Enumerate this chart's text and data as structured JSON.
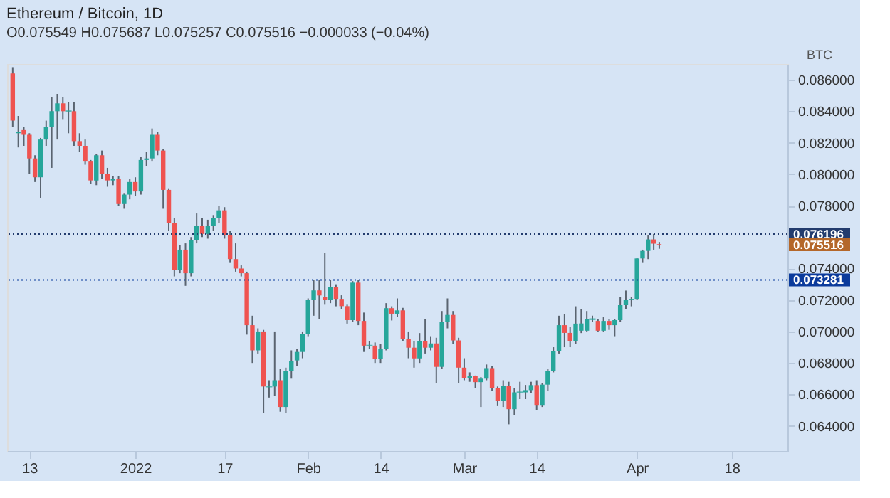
{
  "chart_data": {
    "type": "candlestick",
    "title": "Ethereum / Bitcoin, 1D",
    "subtitle": "O0.075549 H0.075687 L0.075257 C0.075516 −0.000033 (−0.04%)",
    "ylabel": "BTC",
    "x": [
      "2021-12-10",
      "2021-12-11",
      "2021-12-12",
      "2021-12-13",
      "2021-12-14",
      "2021-12-15",
      "2021-12-16",
      "2021-12-17",
      "2021-12-18",
      "2021-12-19",
      "2021-12-20",
      "2021-12-21",
      "2021-12-22",
      "2021-12-23",
      "2021-12-24",
      "2021-12-25",
      "2021-12-26",
      "2021-12-27",
      "2021-12-28",
      "2021-12-29",
      "2021-12-30",
      "2021-12-31",
      "2022-01-01",
      "2022-01-02",
      "2022-01-03",
      "2022-01-04",
      "2022-01-05",
      "2022-01-06",
      "2022-01-07",
      "2022-01-08",
      "2022-01-09",
      "2022-01-10",
      "2022-01-11",
      "2022-01-12",
      "2022-01-13",
      "2022-01-14",
      "2022-01-15",
      "2022-01-16",
      "2022-01-17",
      "2022-01-18",
      "2022-01-19",
      "2022-01-20",
      "2022-01-21",
      "2022-01-22",
      "2022-01-23",
      "2022-01-24",
      "2022-01-25",
      "2022-01-26",
      "2022-01-27",
      "2022-01-28",
      "2022-01-29",
      "2022-01-30",
      "2022-01-31",
      "2022-02-01",
      "2022-02-02",
      "2022-02-03",
      "2022-02-04",
      "2022-02-05",
      "2022-02-06",
      "2022-02-07",
      "2022-02-08",
      "2022-02-09",
      "2022-02-10",
      "2022-02-11",
      "2022-02-12",
      "2022-02-13",
      "2022-02-14",
      "2022-02-15",
      "2022-02-16",
      "2022-02-17",
      "2022-02-18",
      "2022-02-19",
      "2022-02-20",
      "2022-02-21",
      "2022-02-22",
      "2022-02-23",
      "2022-02-24",
      "2022-02-25",
      "2022-02-26",
      "2022-02-27",
      "2022-02-28",
      "2022-03-01",
      "2022-03-02",
      "2022-03-03",
      "2022-03-04",
      "2022-03-05",
      "2022-03-06",
      "2022-03-07",
      "2022-03-08",
      "2022-03-09",
      "2022-03-10",
      "2022-03-11",
      "2022-03-12",
      "2022-03-13",
      "2022-03-14",
      "2022-03-15",
      "2022-03-16",
      "2022-03-17",
      "2022-03-18",
      "2022-03-19",
      "2022-03-20",
      "2022-03-21",
      "2022-03-22",
      "2022-03-23",
      "2022-03-24",
      "2022-03-25",
      "2022-03-26",
      "2022-03-27",
      "2022-03-28",
      "2022-03-29",
      "2022-03-30",
      "2022-03-31",
      "2022-04-01",
      "2022-04-02",
      "2022-04-03",
      "2022-04-04",
      "2022-04-05"
    ],
    "ohlc": [
      [
        0.0864,
        0.0868,
        0.083,
        0.0834
      ],
      [
        0.0826,
        0.0837,
        0.0817,
        0.0827
      ],
      [
        0.0828,
        0.083,
        0.0818,
        0.0825
      ],
      [
        0.0825,
        0.0826,
        0.08,
        0.081
      ],
      [
        0.081,
        0.0812,
        0.0795,
        0.0798
      ],
      [
        0.0798,
        0.0823,
        0.0785,
        0.0822
      ],
      [
        0.0822,
        0.0834,
        0.0818,
        0.083
      ],
      [
        0.083,
        0.0849,
        0.0804,
        0.084
      ],
      [
        0.084,
        0.0851,
        0.0822,
        0.0845
      ],
      [
        0.0845,
        0.0849,
        0.0835,
        0.084
      ],
      [
        0.084,
        0.0846,
        0.0826,
        0.084
      ],
      [
        0.084,
        0.0846,
        0.0818,
        0.0821
      ],
      [
        0.0821,
        0.0826,
        0.0814,
        0.0818
      ],
      [
        0.0818,
        0.0822,
        0.0806,
        0.0808
      ],
      [
        0.0808,
        0.0809,
        0.0794,
        0.0796
      ],
      [
        0.0796,
        0.0813,
        0.0793,
        0.0812
      ],
      [
        0.0812,
        0.0815,
        0.0797,
        0.08
      ],
      [
        0.08,
        0.0804,
        0.0792,
        0.0796
      ],
      [
        0.0796,
        0.0799,
        0.0793,
        0.0797
      ],
      [
        0.0797,
        0.0799,
        0.078,
        0.0781
      ],
      [
        0.0781,
        0.0788,
        0.0778,
        0.0787
      ],
      [
        0.0787,
        0.0797,
        0.0784,
        0.0795
      ],
      [
        0.0795,
        0.0798,
        0.0786,
        0.0789
      ],
      [
        0.0789,
        0.0811,
        0.0787,
        0.0809
      ],
      [
        0.0809,
        0.0814,
        0.0805,
        0.081
      ],
      [
        0.081,
        0.0829,
        0.0808,
        0.0825
      ],
      [
        0.0825,
        0.0827,
        0.0812,
        0.0815
      ],
      [
        0.0815,
        0.0816,
        0.0778,
        0.079
      ],
      [
        0.079,
        0.0791,
        0.0764,
        0.0769
      ],
      [
        0.0769,
        0.0772,
        0.0735,
        0.0739
      ],
      [
        0.0739,
        0.0755,
        0.0737,
        0.0752
      ],
      [
        0.0752,
        0.0756,
        0.0729,
        0.0737
      ],
      [
        0.0737,
        0.076,
        0.0735,
        0.0758
      ],
      [
        0.0758,
        0.0775,
        0.0756,
        0.0767
      ],
      [
        0.0767,
        0.0772,
        0.076,
        0.0762
      ],
      [
        0.0762,
        0.0771,
        0.0759,
        0.0767
      ],
      [
        0.0767,
        0.0774,
        0.0764,
        0.0772
      ],
      [
        0.0772,
        0.078,
        0.0769,
        0.0777
      ],
      [
        0.0777,
        0.0779,
        0.0759,
        0.0761
      ],
      [
        0.0761,
        0.0764,
        0.0744,
        0.0746
      ],
      [
        0.0746,
        0.0756,
        0.0738,
        0.074
      ],
      [
        0.074,
        0.0742,
        0.0735,
        0.0737
      ],
      [
        0.0737,
        0.0738,
        0.0698,
        0.0704
      ],
      [
        0.0704,
        0.071,
        0.068,
        0.0688
      ],
      [
        0.0688,
        0.0702,
        0.0686,
        0.07
      ],
      [
        0.07,
        0.0701,
        0.0648,
        0.0665
      ],
      [
        0.0665,
        0.0669,
        0.0658,
        0.0665
      ],
      [
        0.0665,
        0.07,
        0.0659,
        0.0669
      ],
      [
        0.0669,
        0.0676,
        0.0649,
        0.0652
      ],
      [
        0.0652,
        0.0677,
        0.0648,
        0.0675
      ],
      [
        0.0675,
        0.0688,
        0.067,
        0.0681
      ],
      [
        0.06816,
        0.0689,
        0.0678,
        0.0687
      ],
      [
        0.0687,
        0.07,
        0.0683,
        0.06986
      ],
      [
        0.06986,
        0.0721,
        0.0697,
        0.07202
      ],
      [
        0.07202,
        0.0733,
        0.071,
        0.07261
      ],
      [
        0.07261,
        0.0733,
        0.0708,
        0.07229
      ],
      [
        0.07221,
        0.075,
        0.0717,
        0.07202
      ],
      [
        0.07202,
        0.0733,
        0.0718,
        0.0728
      ],
      [
        0.0728,
        0.073,
        0.0716,
        0.07207
      ],
      [
        0.07207,
        0.0723,
        0.0714,
        0.07161
      ],
      [
        0.07161,
        0.0717,
        0.0705,
        0.07072
      ],
      [
        0.07072,
        0.0732,
        0.0706,
        0.0731
      ],
      [
        0.0731,
        0.07328,
        0.0704,
        0.07067
      ],
      [
        0.07067,
        0.0712,
        0.0687,
        0.0691
      ],
      [
        0.0691,
        0.0694,
        0.0689,
        0.0691
      ],
      [
        0.0691,
        0.0693,
        0.068,
        0.06824
      ],
      [
        0.06824,
        0.0692,
        0.068,
        0.06889
      ],
      [
        0.06889,
        0.0718,
        0.0688,
        0.07148
      ],
      [
        0.07148,
        0.0716,
        0.0707,
        0.07113
      ],
      [
        0.07113,
        0.0721,
        0.0709,
        0.07134
      ],
      [
        0.07134,
        0.0715,
        0.0694,
        0.06951
      ],
      [
        0.06951,
        0.07,
        0.0683,
        0.06897
      ],
      [
        0.06897,
        0.0694,
        0.0677,
        0.06829
      ],
      [
        0.06829,
        0.0699,
        0.068,
        0.06937
      ],
      [
        0.06937,
        0.0708,
        0.0686,
        0.06897
      ],
      [
        0.06897,
        0.0697,
        0.0688,
        0.06924
      ],
      [
        0.06924,
        0.0696,
        0.0667,
        0.06775
      ],
      [
        0.06775,
        0.0713,
        0.0676,
        0.07059
      ],
      [
        0.07059,
        0.0721,
        0.0702,
        0.07105
      ],
      [
        0.07105,
        0.0713,
        0.0692,
        0.06943
      ],
      [
        0.06943,
        0.0696,
        0.0667,
        0.0677
      ],
      [
        0.0677,
        0.0683,
        0.0669,
        0.06705
      ],
      [
        0.06705,
        0.0674,
        0.0668,
        0.06716
      ],
      [
        0.06716,
        0.0672,
        0.0664,
        0.06678
      ],
      [
        0.06678,
        0.0671,
        0.0652,
        0.067
      ],
      [
        0.067,
        0.0679,
        0.0669,
        0.06767
      ],
      [
        0.06767,
        0.0678,
        0.0662,
        0.0664
      ],
      [
        0.0664,
        0.0665,
        0.0653,
        0.0656
      ],
      [
        0.0656,
        0.0669,
        0.0652,
        0.06654
      ],
      [
        0.06654,
        0.0668,
        0.0641,
        0.06506
      ],
      [
        0.06506,
        0.0664,
        0.0647,
        0.06613
      ],
      [
        0.06613,
        0.0668,
        0.0657,
        0.06613
      ],
      [
        0.06613,
        0.0666,
        0.0657,
        0.06627
      ],
      [
        0.06627,
        0.0668,
        0.0661,
        0.06659
      ],
      [
        0.06659,
        0.0669,
        0.065,
        0.06533
      ],
      [
        0.06533,
        0.0667,
        0.0652,
        0.06662
      ],
      [
        0.06662,
        0.0676,
        0.0662,
        0.06748
      ],
      [
        0.06748,
        0.069,
        0.0674,
        0.06875
      ],
      [
        0.06875,
        0.071,
        0.0686,
        0.0704
      ],
      [
        0.0704,
        0.0711,
        0.069,
        0.06991
      ],
      [
        0.06991,
        0.0703,
        0.069,
        0.06937
      ],
      [
        0.06937,
        0.0716,
        0.0692,
        0.0705
      ],
      [
        0.07005,
        0.0714,
        0.0699,
        0.07051
      ],
      [
        0.07005,
        0.0713,
        0.07,
        0.07078
      ],
      [
        0.07078,
        0.071,
        0.0706,
        0.07078
      ],
      [
        0.07067,
        0.0708,
        0.07,
        0.07005
      ],
      [
        0.07005,
        0.0709,
        0.07,
        0.07067
      ],
      [
        0.07067,
        0.0708,
        0.0701,
        0.0704
      ],
      [
        0.0704,
        0.0708,
        0.0697,
        0.07072
      ],
      [
        0.07072,
        0.0722,
        0.0706,
        0.07167
      ],
      [
        0.07167,
        0.0726,
        0.0714,
        0.07199
      ],
      [
        0.07199,
        0.0722,
        0.0716,
        0.07207
      ],
      [
        0.07207,
        0.0747,
        0.072,
        0.07464
      ],
      [
        0.07464,
        0.0752,
        0.0744,
        0.07512
      ],
      [
        0.07512,
        0.0761,
        0.0746,
        0.07585
      ],
      [
        0.07585,
        0.076196,
        0.0752,
        0.07558
      ],
      [
        0.075549,
        0.075687,
        0.075257,
        0.075516
      ]
    ],
    "colors": [
      "#ef5350",
      "#26a69a",
      "#ef5350",
      "#ef5350",
      "#ef5350",
      "#26a69a",
      "#26a69a",
      "#26a69a",
      "#26a69a",
      "#ef5350",
      "#26a69a",
      "#ef5350",
      "#ef5350",
      "#ef5350",
      "#ef5350",
      "#26a69a",
      "#ef5350",
      "#ef5350",
      "#26a69a",
      "#ef5350",
      "#26a69a",
      "#26a69a",
      "#ef5350",
      "#26a69a",
      "#26a69a",
      "#26a69a",
      "#ef5350",
      "#ef5350",
      "#ef5350",
      "#ef5350",
      "#26a69a",
      "#ef5350",
      "#26a69a",
      "#26a69a",
      "#ef5350",
      "#26a69a",
      "#26a69a",
      "#26a69a",
      "#ef5350",
      "#ef5350",
      "#ef5350",
      "#ef5350",
      "#ef5350",
      "#ef5350",
      "#26a69a",
      "#ef5350",
      "#26a69a",
      "#26a69a",
      "#ef5350",
      "#26a69a",
      "#26a69a",
      "#26a69a",
      "#26a69a",
      "#26a69a",
      "#26a69a",
      "#ef5350",
      "#ef5350",
      "#26a69a",
      "#ef5350",
      "#ef5350",
      "#ef5350",
      "#26a69a",
      "#ef5350",
      "#ef5350",
      "#26a69a",
      "#ef5350",
      "#26a69a",
      "#26a69a",
      "#ef5350",
      "#26a69a",
      "#ef5350",
      "#ef5350",
      "#ef5350",
      "#26a69a",
      "#ef5350",
      "#26a69a",
      "#ef5350",
      "#26a69a",
      "#26a69a",
      "#ef5350",
      "#ef5350",
      "#ef5350",
      "#26a69a",
      "#ef5350",
      "#26a69a",
      "#26a69a",
      "#ef5350",
      "#ef5350",
      "#26a69a",
      "#ef5350",
      "#26a69a",
      "#26a69a",
      "#26a69a",
      "#26a69a",
      "#ef5350",
      "#26a69a",
      "#26a69a",
      "#26a69a",
      "#26a69a",
      "#ef5350",
      "#ef5350",
      "#26a69a",
      "#26a69a",
      "#26a69a",
      "#26a69a",
      "#ef5350",
      "#26a69a",
      "#ef5350",
      "#26a69a",
      "#26a69a",
      "#26a69a",
      "#26a69a",
      "#26a69a",
      "#26a69a",
      "#26a69a",
      "#ef5350",
      "#ef5350"
    ],
    "xlim": [
      "2021-12-09",
      "2022-04-28"
    ],
    "xticks": [
      {
        "value": "2021-12-13",
        "label": "13"
      },
      {
        "value": "2022-01-01",
        "label": "2022"
      },
      {
        "value": "2022-01-17",
        "label": "17"
      },
      {
        "value": "2022-02-01",
        "label": "Feb"
      },
      {
        "value": "2022-02-14",
        "label": "14"
      },
      {
        "value": "2022-03-01",
        "label": "Mar"
      },
      {
        "value": "2022-03-14",
        "label": "14"
      },
      {
        "value": "2022-04-01",
        "label": "Apr"
      },
      {
        "value": "2022-04-18",
        "label": "18"
      }
    ],
    "ylim": [
      0.0624,
      0.087
    ],
    "yticks": [
      {
        "value": 0.064,
        "label": "0.064000"
      },
      {
        "value": 0.066,
        "label": "0.066000"
      },
      {
        "value": 0.068,
        "label": "0.068000"
      },
      {
        "value": 0.07,
        "label": "0.070000"
      },
      {
        "value": 0.072,
        "label": "0.072000"
      },
      {
        "value": 0.074,
        "label": "0.074000"
      },
      {
        "value": 0.076,
        "label": null
      },
      {
        "value": 0.078,
        "label": "0.078000"
      },
      {
        "value": 0.08,
        "label": "0.080000"
      },
      {
        "value": 0.082,
        "label": "0.082000"
      },
      {
        "value": 0.084,
        "label": "0.084000"
      },
      {
        "value": 0.086,
        "label": "0.086000"
      }
    ],
    "ref_lines": [
      {
        "axis": "y",
        "value": 0.076196,
        "label": "0.076196",
        "color": "#233c6e",
        "line_style": "dotted"
      },
      {
        "axis": "y",
        "value": 0.073281,
        "label": "0.073281",
        "color": "#0b3b9c",
        "line_style": "dotted"
      }
    ],
    "annotations": [
      "0.075516"
    ],
    "grid": false
  }
}
